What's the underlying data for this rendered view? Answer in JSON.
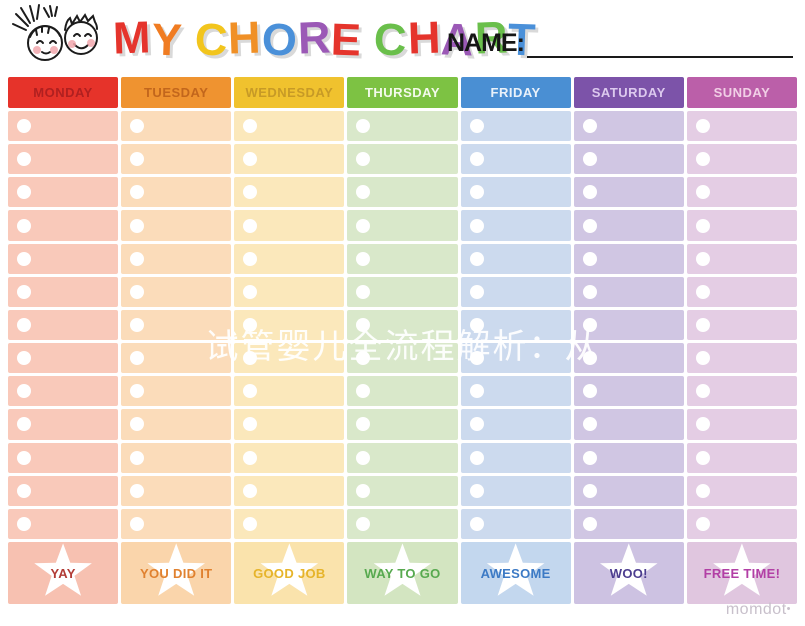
{
  "header": {
    "logo": "two-kids-faces-illustration",
    "title": "MY CHORE CHART",
    "title_letters": [
      {
        "ch": "M",
        "color": "#e5342c"
      },
      {
        "ch": "Y",
        "color": "#f07c22"
      },
      {
        "ch": " ",
        "color": ""
      },
      {
        "ch": "C",
        "color": "#f2c51d"
      },
      {
        "ch": "H",
        "color": "#f09026"
      },
      {
        "ch": "O",
        "color": "#4a90d9"
      },
      {
        "ch": "R",
        "color": "#9b59b6"
      },
      {
        "ch": "E",
        "color": "#e5342c"
      },
      {
        "ch": " ",
        "color": ""
      },
      {
        "ch": "C",
        "color": "#6abf4b"
      },
      {
        "ch": "H",
        "color": "#e5342c"
      },
      {
        "ch": "A",
        "color": "#9b59b6"
      },
      {
        "ch": "R",
        "color": "#6abf4b"
      },
      {
        "ch": "T",
        "color": "#4a90d9"
      }
    ],
    "name_label": "NAME:",
    "name_value": ""
  },
  "chart": {
    "rows_per_day": 13,
    "columns": [
      {
        "day": "MONDAY",
        "header_bg": "#e6332a",
        "header_text_color": "#b02020",
        "cell_bg": "#f9c9ba",
        "footer_bg": "#f7c1b1",
        "footer_label": "YAY",
        "footer_text_color": "#b23c36"
      },
      {
        "day": "TUESDAY",
        "header_bg": "#ef9330",
        "header_text_color": "#c2661c",
        "cell_bg": "#fbdcba",
        "footer_bg": "#fad5ab",
        "footer_label": "YOU DID IT",
        "footer_text_color": "#e0812f"
      },
      {
        "day": "WEDNESDAY",
        "header_bg": "#f0c22e",
        "header_text_color": "#c79a26",
        "cell_bg": "#fbe8bb",
        "footer_bg": "#fae3ac",
        "footer_label": "GOOD JOB",
        "footer_text_color": "#e6b42a"
      },
      {
        "day": "THURSDAY",
        "header_bg": "#7dc243",
        "header_text_color": "#f4faec",
        "cell_bg": "#d9e8ca",
        "footer_bg": "#d3e5c1",
        "footer_label": "WAY TO GO",
        "footer_text_color": "#57a94f"
      },
      {
        "day": "FRIDAY",
        "header_bg": "#4a8fd3",
        "header_text_color": "#eaf2fa",
        "cell_bg": "#ccdaee",
        "footer_bg": "#c3d7ee",
        "footer_label": "AWESOME",
        "footer_text_color": "#3c7ac5"
      },
      {
        "day": "SATURDAY",
        "header_bg": "#7c53a9",
        "header_text_color": "#dcc9ee",
        "cell_bg": "#d0c6e3",
        "footer_bg": "#cdc2e2",
        "footer_label": "WOO!",
        "footer_text_color": "#4c3d8f"
      },
      {
        "day": "SUNDAY",
        "header_bg": "#bb5fa9",
        "header_text_color": "#f1cfe6",
        "cell_bg": "#e4cde4",
        "footer_bg": "#e0c6df",
        "footer_label": "FREE TIME!",
        "footer_text_color": "#b23fa5"
      }
    ]
  },
  "watermark": {
    "text": "试管婴儿全流程解析：从",
    "color": "#ffffff"
  },
  "footer": {
    "brand": "momdot",
    "brand_dot": "•"
  }
}
